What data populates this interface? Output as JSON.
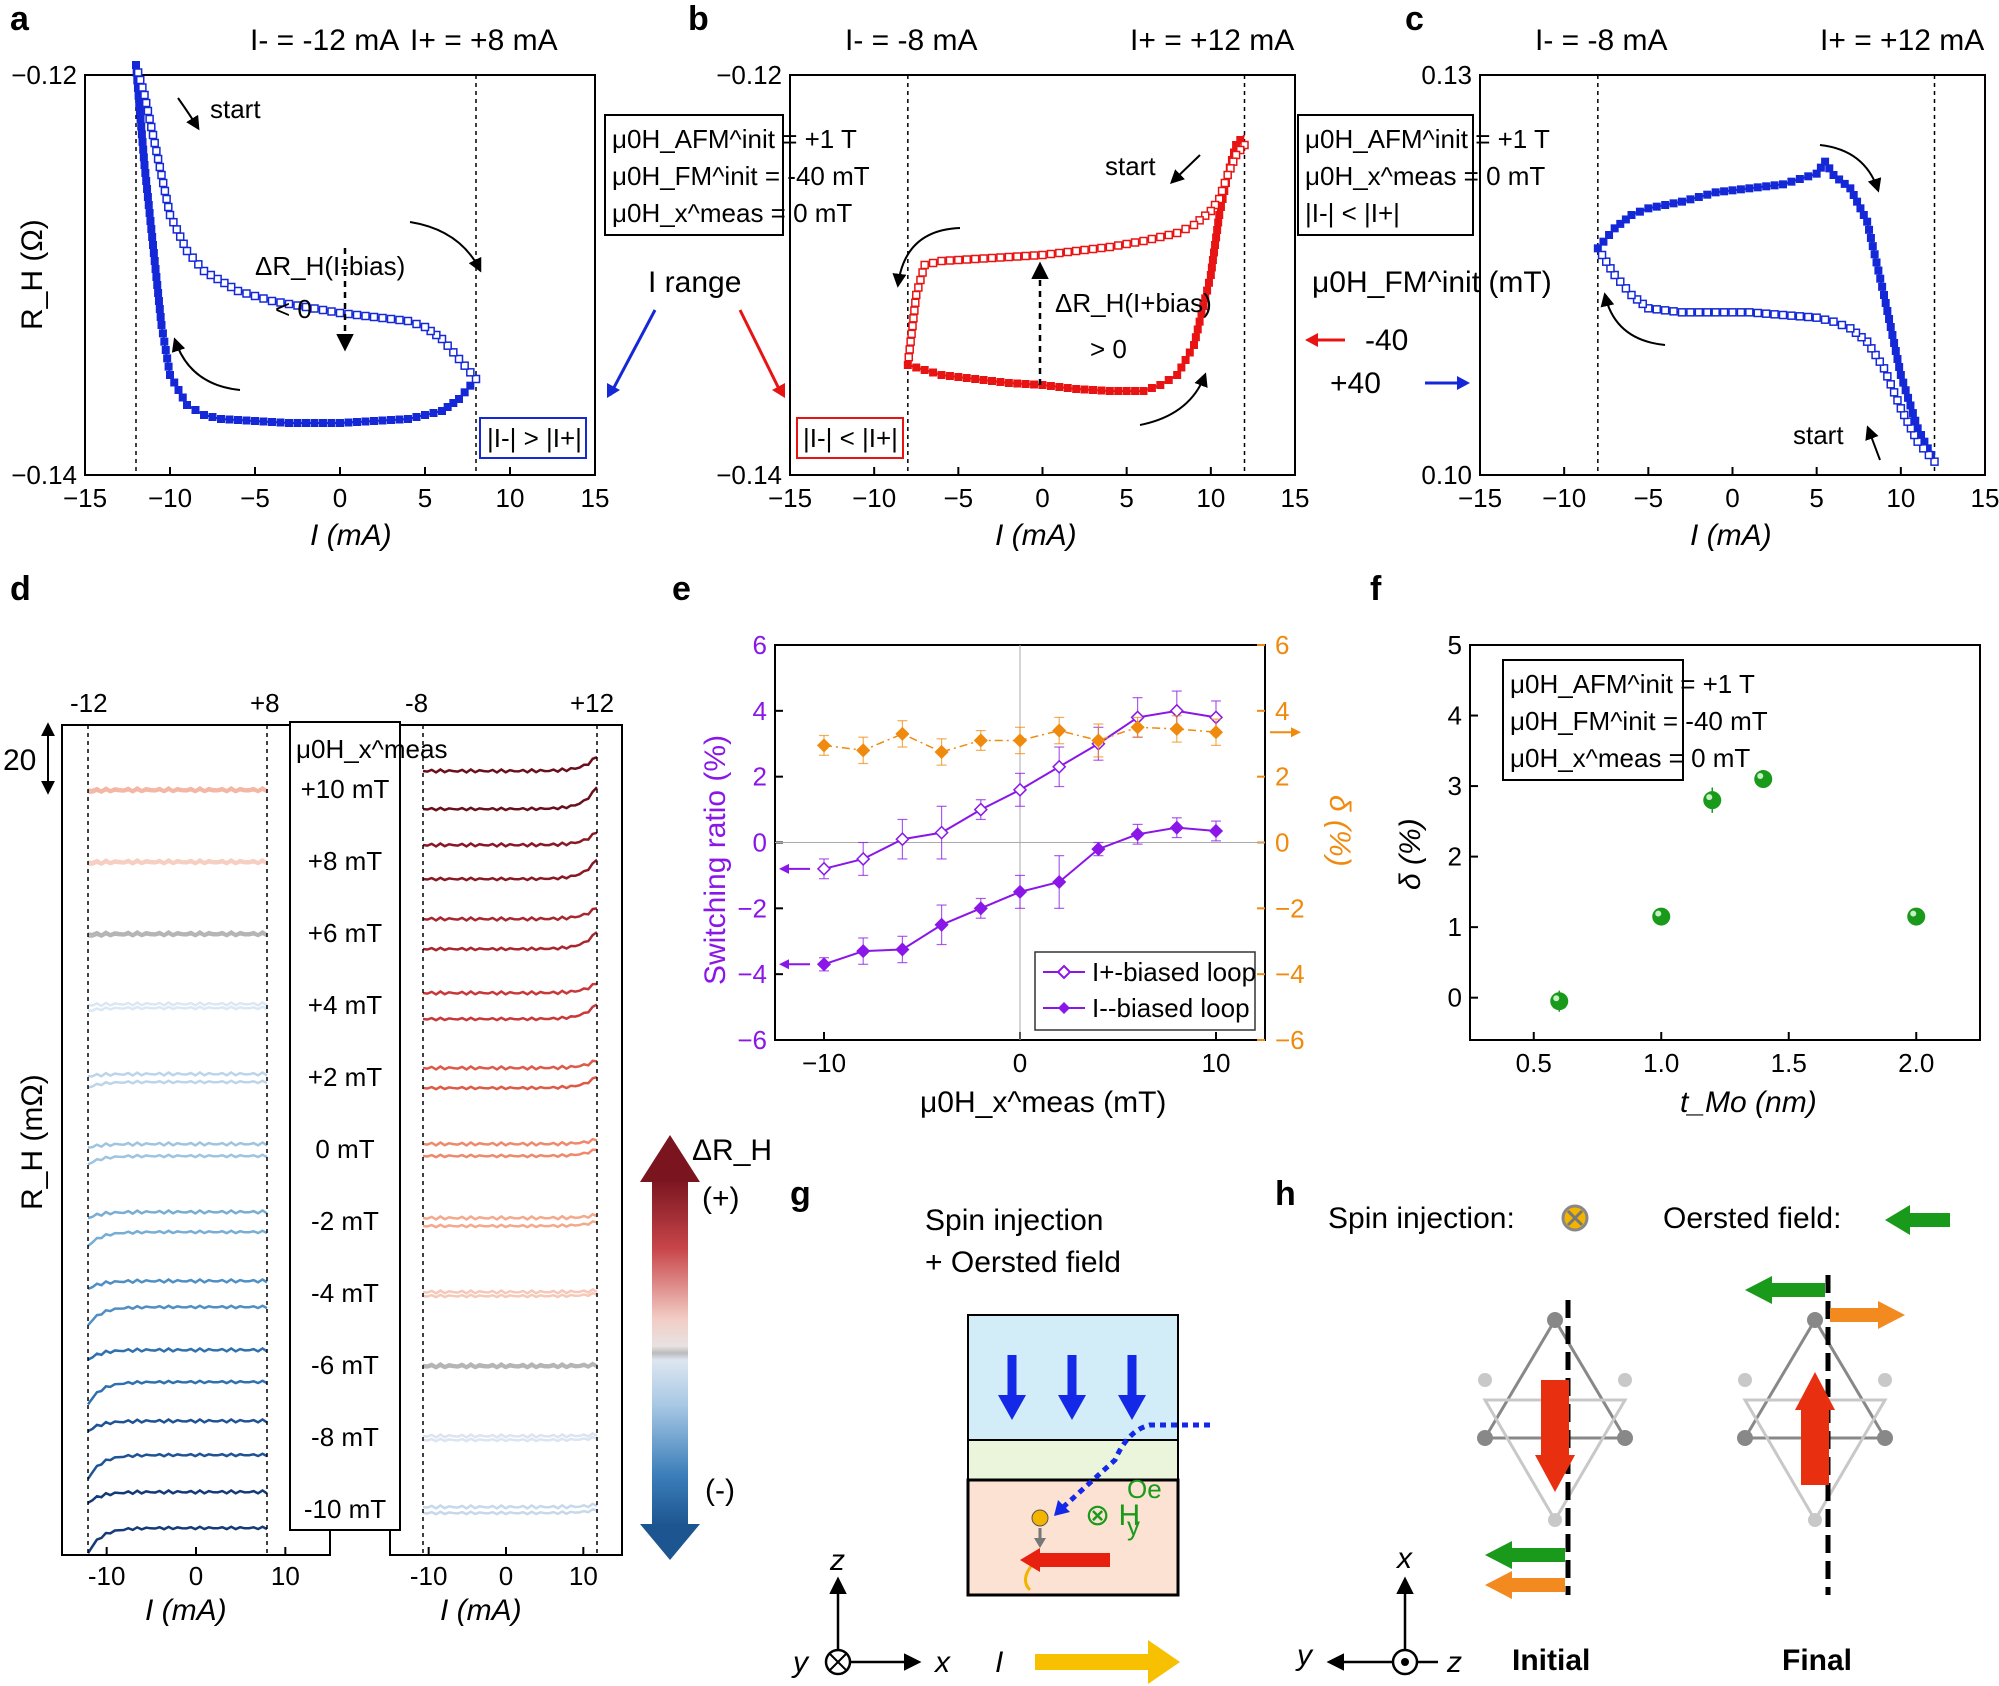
{
  "panels": {
    "a": "a",
    "b": "b",
    "c": "c",
    "d": "d",
    "e": "e",
    "f": "f",
    "g": "g",
    "h": "h"
  },
  "common": {
    "x_label": "I (mA)",
    "y_label_ohm": "R_H (Ω)",
    "blue": "#1428d8",
    "red": "#e81414"
  },
  "chart_data": [
    {
      "id": "a",
      "type": "line",
      "xlim": [
        -15,
        15
      ],
      "ylim": [
        -0.14,
        -0.12
      ],
      "xticks": [
        "−15",
        "−10",
        "−5",
        "0",
        "5",
        "10",
        "15"
      ],
      "yticks": [
        "−0.12",
        "−0.14"
      ],
      "xlabel": "I (mA)",
      "ylabel": "R_H (Ω)",
      "bias_labels": [
        "I- = -12 mA",
        "I+ = +8 mA"
      ],
      "bias_lines": [
        -12,
        8
      ],
      "annotations": [
        "start",
        "ΔR_H(I-bias)",
        "< 0"
      ],
      "box_label": "|I-| > |I+|",
      "series": [
        {
          "name": "sweep-up (filled)",
          "color": "#1428d8",
          "x": [
            -12,
            -11.5,
            -11,
            -10.5,
            -10,
            -9,
            -8,
            -7,
            -5,
            -3,
            -1,
            0,
            2,
            4,
            6,
            7,
            8
          ],
          "y": [
            -0.1195,
            -0.1245,
            -0.1285,
            -0.1325,
            -0.135,
            -0.1365,
            -0.137,
            -0.1372,
            -0.1373,
            -0.1374,
            -0.1374,
            -0.1374,
            -0.1373,
            -0.1372,
            -0.1368,
            -0.1362,
            -0.1352
          ]
        },
        {
          "name": "sweep-down (open)",
          "color": "#1428d8",
          "x": [
            8,
            7,
            6,
            5,
            4,
            2,
            0,
            -2,
            -4,
            -6,
            -8,
            -9,
            -10,
            -10.5,
            -11,
            -11.5,
            -12
          ],
          "y": [
            -0.1352,
            -0.1342,
            -0.1332,
            -0.1326,
            -0.1323,
            -0.1321,
            -0.1319,
            -0.1316,
            -0.1313,
            -0.1308,
            -0.1298,
            -0.1288,
            -0.127,
            -0.125,
            -0.123,
            -0.121,
            -0.1195
          ]
        }
      ]
    },
    {
      "id": "b",
      "type": "line",
      "xlim": [
        -15,
        15
      ],
      "ylim": [
        -0.14,
        -0.12
      ],
      "xticks": [
        "−15",
        "−10",
        "−5",
        "0",
        "5",
        "10",
        "15"
      ],
      "yticks": [
        "−0.12",
        "−0.14"
      ],
      "xlabel": "I (mA)",
      "ylabel": "",
      "bias_labels": [
        "I- = -8 mA",
        "I+ = +12 mA"
      ],
      "bias_lines": [
        -8,
        12
      ],
      "annotations": [
        "start",
        "ΔR_H(I+bias)",
        "> 0"
      ],
      "box_label": "|I-| < |I+|",
      "field_box": [
        "μ0H_AFM^init = +1 T",
        "μ0H_FM^init = -40 mT",
        "μ0H_x^meas = 0 mT"
      ],
      "side_label": "I range",
      "series": [
        {
          "name": "sweep-up (filled)",
          "color": "#e81414",
          "x": [
            -8,
            -6,
            -4,
            -2,
            0,
            2,
            4,
            6,
            7,
            8,
            9,
            10,
            10.5,
            11,
            11.5,
            12
          ],
          "y": [
            -0.1345,
            -0.135,
            -0.1352,
            -0.1354,
            -0.1355,
            -0.1357,
            -0.1358,
            -0.1358,
            -0.1355,
            -0.135,
            -0.1335,
            -0.13,
            -0.127,
            -0.125,
            -0.1235,
            -0.123
          ]
        },
        {
          "name": "sweep-down (open)",
          "color": "#e81414",
          "x": [
            12,
            11.5,
            11,
            10.5,
            10,
            9,
            8,
            6,
            4,
            2,
            0,
            -2,
            -4,
            -6,
            -7,
            -7.5,
            -8
          ],
          "y": [
            -0.1235,
            -0.124,
            -0.125,
            -0.1262,
            -0.1268,
            -0.1275,
            -0.1279,
            -0.1283,
            -0.1286,
            -0.1288,
            -0.129,
            -0.1291,
            -0.1292,
            -0.1293,
            -0.1295,
            -0.131,
            -0.1345
          ]
        }
      ]
    },
    {
      "id": "c",
      "type": "line",
      "xlim": [
        -15,
        15
      ],
      "ylim": [
        0.1,
        0.13
      ],
      "xticks": [
        "−15",
        "−10",
        "−5",
        "0",
        "5",
        "10",
        "15"
      ],
      "yticks": [
        "0.13",
        "0.10"
      ],
      "xlabel": "I (mA)",
      "ylabel": "",
      "bias_labels": [
        "I- = -8 mA",
        "I+ = +12 mA"
      ],
      "bias_lines": [
        -8,
        12
      ],
      "annotations": [
        "start"
      ],
      "field_box": [
        "μ0H_AFM^init = +1 T",
        "μ0H_x^meas = 0 mT",
        "|I-| < |I+|"
      ],
      "legend_title": "μ0H_FM^init (mT)",
      "legend": [
        "-40",
        "+40"
      ],
      "series": [
        {
          "name": "sweep-up (filled)",
          "color": "#1428d8",
          "x": [
            -8,
            -7,
            -6,
            -5,
            -3,
            -1,
            1,
            3,
            4,
            5,
            5.5,
            6,
            7,
            8,
            9,
            10,
            11,
            12
          ],
          "y": [
            0.117,
            0.1185,
            0.1195,
            0.12,
            0.1205,
            0.1212,
            0.1215,
            0.1218,
            0.1222,
            0.1226,
            0.1235,
            0.1225,
            0.1215,
            0.119,
            0.1135,
            0.1075,
            0.1035,
            0.101
          ]
        },
        {
          "name": "sweep-down (open)",
          "color": "#1428d8",
          "x": [
            12,
            11,
            10,
            9,
            8,
            7,
            6,
            5,
            3,
            1,
            -1,
            -3,
            -5,
            -6,
            -7,
            -8
          ],
          "y": [
            0.101,
            0.1025,
            0.105,
            0.108,
            0.11,
            0.111,
            0.1115,
            0.1118,
            0.112,
            0.1122,
            0.1122,
            0.1122,
            0.1125,
            0.1135,
            0.115,
            0.117
          ]
        }
      ]
    },
    {
      "id": "d",
      "type": "line",
      "xlabel": "I (mA)",
      "ylabel": "R_H (mΩ)",
      "scale_bar": "20",
      "left_top_ticks": [
        "-12",
        "+8"
      ],
      "right_top_ticks": [
        "-8",
        "+12"
      ],
      "xticks_left": [
        "-10",
        "0",
        "10"
      ],
      "xticks_right": [
        "-10",
        "0",
        "10"
      ],
      "field_header": "μ0H_x^meas",
      "fields": [
        "+10 mT",
        "+8 mT",
        "+6 mT",
        "+4 mT",
        "+2 mT",
        "0 mT",
        "-2 mT",
        "-4 mT",
        "-6 mT",
        "-8 mT",
        "-10 mT"
      ],
      "left_loop_amplitude": [
        2,
        2,
        2,
        4,
        8,
        12,
        20,
        26,
        32,
        34,
        36
      ],
      "right_loop_amplitude": [
        38,
        34,
        30,
        26,
        20,
        12,
        8,
        4,
        2,
        4,
        6
      ],
      "colorbar_top": "ΔR_H",
      "colorbar_plus": "(+)",
      "colorbar_minus": "(-)"
    },
    {
      "id": "e",
      "type": "line",
      "xlim": [
        -12.5,
        12.5
      ],
      "ylim": [
        -6,
        6
      ],
      "xticks": [
        "−10",
        "0",
        "10"
      ],
      "yticks_left": [
        "6",
        "4",
        "2",
        "0",
        "−2",
        "−4",
        "−6"
      ],
      "yticks_right": [
        "6",
        "4",
        "2",
        "0",
        "−2",
        "−4",
        "−6"
      ],
      "xlabel": "μ0H_x^meas (mT)",
      "ylabel": "Switching ratio (%)",
      "ylabel_right": "δ (%)",
      "series": [
        {
          "name": "I+-biased loop",
          "color": "#8a17e8",
          "x": [
            -10,
            -8,
            -6,
            -4,
            -2,
            0,
            2,
            4,
            6,
            8,
            10
          ],
          "y": [
            -0.8,
            -0.5,
            0.1,
            0.3,
            1.0,
            1.6,
            2.3,
            3.0,
            3.8,
            4.0,
            3.8
          ],
          "err": [
            0.3,
            0.5,
            0.6,
            0.8,
            0.3,
            0.5,
            0.6,
            0.5,
            0.6,
            0.6,
            0.5
          ]
        },
        {
          "name": "I--biased loop",
          "color": "#8a17e8",
          "x": [
            -10,
            -8,
            -6,
            -4,
            -2,
            0,
            2,
            4,
            6,
            8,
            10
          ],
          "y": [
            -3.7,
            -3.3,
            -3.25,
            -2.5,
            -2.0,
            -1.5,
            -1.2,
            -0.2,
            0.25,
            0.45,
            0.35
          ],
          "err": [
            0.2,
            0.4,
            0.4,
            0.6,
            0.3,
            0.5,
            0.8,
            0.2,
            0.3,
            0.3,
            0.3
          ]
        },
        {
          "name": "δ",
          "color": "#f08a0e",
          "x": [
            -10,
            -8,
            -6,
            -4,
            -2,
            0,
            2,
            4,
            6,
            8,
            10
          ],
          "y": [
            2.95,
            2.8,
            3.3,
            2.75,
            3.1,
            3.1,
            3.4,
            3.1,
            3.5,
            3.45,
            3.35
          ],
          "err": [
            0.3,
            0.4,
            0.4,
            0.4,
            0.3,
            0.4,
            0.4,
            0.5,
            0.3,
            0.4,
            0.4
          ]
        }
      ]
    },
    {
      "id": "f",
      "type": "scatter",
      "xlim": [
        0.25,
        2.25
      ],
      "ylim": [
        -0.6,
        5
      ],
      "xticks": [
        "0.5",
        "1.0",
        "1.5",
        "2.0"
      ],
      "yticks": [
        "5",
        "4",
        "3",
        "2",
        "1",
        "0"
      ],
      "xlabel": "t_Mo (nm)",
      "ylabel": "δ (%)",
      "field_box": [
        "μ0H_AFM^init = +1 T",
        "μ0H_FM^init = -40 mT",
        "μ0H_x^meas = 0 mT"
      ],
      "series": [
        {
          "name": "δ",
          "color": "#1a9a1a",
          "x": [
            0.6,
            1.0,
            1.2,
            1.4,
            2.0
          ],
          "y": [
            -0.05,
            1.15,
            2.8,
            3.1,
            1.15
          ],
          "err": [
            0.15,
            0.12,
            0.18,
            0.08,
            0.06
          ]
        }
      ]
    }
  ],
  "g": {
    "title_1": "Spin injection",
    "title_2": "+ Oersted field",
    "field_label": "⊗ H",
    "field_sub": "y",
    "field_sup": "Oe",
    "current": "I",
    "axes": [
      "z",
      "y",
      "x"
    ]
  },
  "h": {
    "spin_label": "Spin injection:",
    "oersted_label": "Oersted field:",
    "initial": "Initial",
    "final": "Final",
    "axes": [
      "x",
      "y",
      "z"
    ]
  }
}
